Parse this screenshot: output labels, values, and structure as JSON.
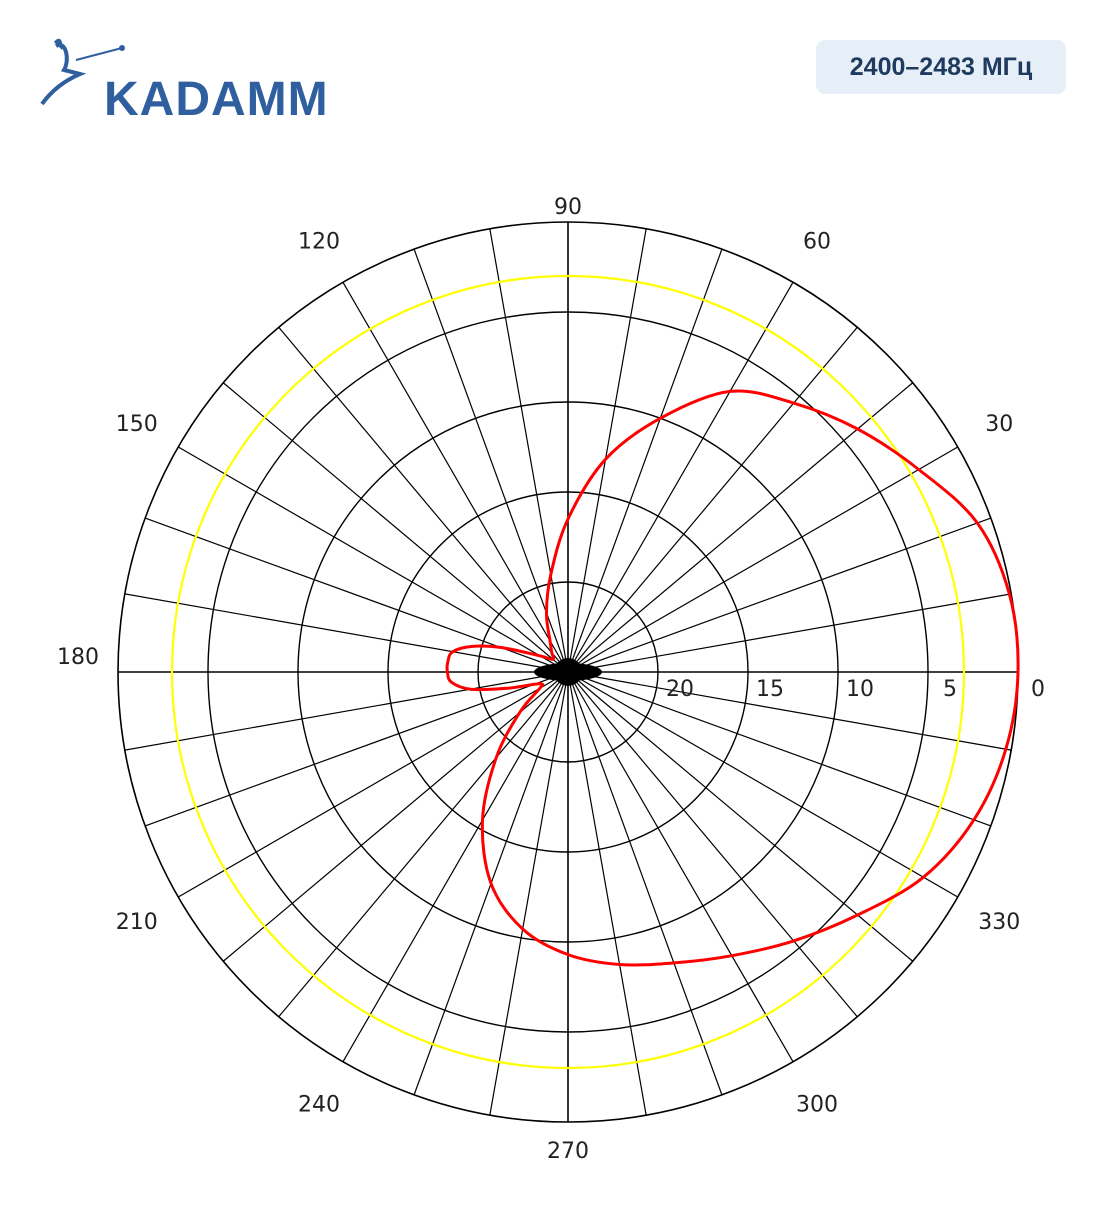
{
  "logo": {
    "text": "KADAMM",
    "icon": "kadamm-logo-mark"
  },
  "badge": {
    "text": "2400–2483 МГц"
  },
  "chart_data": {
    "type": "polar-line",
    "title": "",
    "angle_unit": "degrees",
    "angle_tick_labels": [
      "0",
      "30",
      "60",
      "90",
      "120",
      "150",
      "180",
      "210",
      "240",
      "270",
      "300",
      "330"
    ],
    "radial_tick_labels": [
      "20",
      "15",
      "10",
      "5"
    ],
    "radial_axis_unit": "dB below peak",
    "radial_range": [
      0,
      25
    ],
    "radial_rings": [
      5,
      10,
      15,
      20
    ],
    "reference_ring": 3,
    "spoke_step_deg": 10,
    "colors": {
      "pattern": "#ff0000",
      "reference": "#ffff00",
      "grid": "#000000"
    },
    "series": [
      {
        "name": "",
        "angles": [
          0,
          10,
          20,
          30,
          40,
          50,
          60,
          70,
          80,
          90,
          100,
          110,
          120,
          130,
          140,
          150,
          160,
          165,
          170,
          175,
          180,
          185,
          190,
          195,
          200,
          205,
          210,
          220,
          230,
          240,
          250,
          260,
          270,
          280,
          290,
          300,
          310,
          320,
          330,
          340,
          350
        ],
        "values": [
          0.0,
          0.1,
          0.8,
          2.5,
          4.0,
          5.5,
          7.0,
          10.0,
          13.0,
          16.5,
          19.5,
          21.5,
          23.0,
          23.6,
          23.9,
          23.2,
          21.0,
          19.5,
          18.5,
          18.3,
          18.3,
          18.5,
          19.5,
          21.5,
          23.0,
          23.4,
          23.2,
          21.5,
          18.8,
          15.5,
          12.5,
          10.5,
          9.3,
          8.5,
          7.8,
          6.8,
          5.5,
          4.0,
          2.2,
          1.0,
          0.3
        ]
      }
    ]
  }
}
